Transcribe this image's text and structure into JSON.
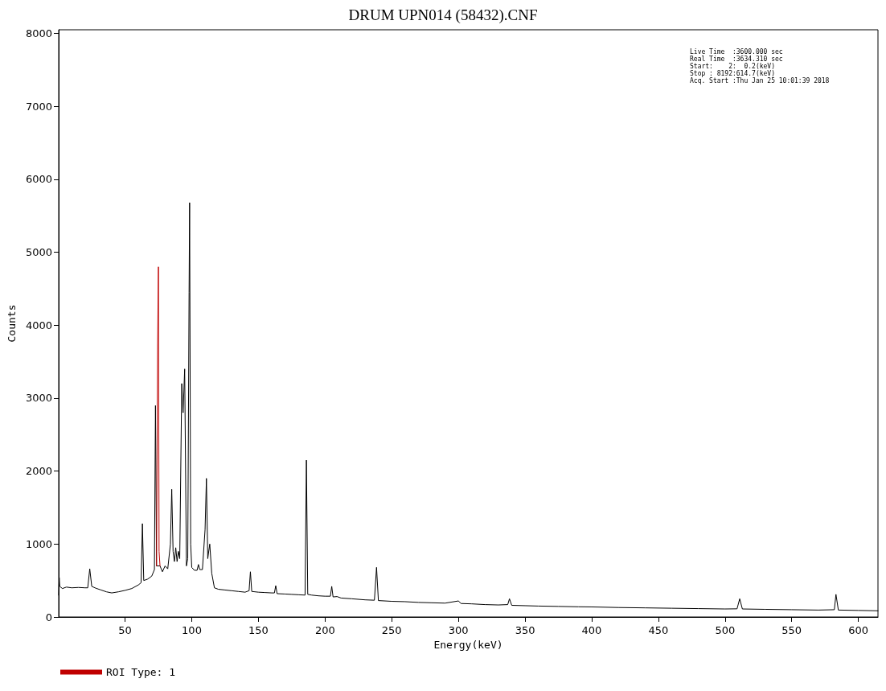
{
  "chart_data": {
    "type": "line",
    "title": "DRUM UPN014 (58432).CNF",
    "xlabel": "Energy(keV)",
    "ylabel": "Counts",
    "annotations": [
      "Live Time  :3600.000 sec",
      "Real Time  :3634.310 sec",
      "Start:    2:  0.2(keV)",
      "Stop : 8192:614.7(keV)",
      "Acq. Start :Thu Jan 25 10:01:39 2018"
    ],
    "xlim": [
      0.2,
      614.7
    ],
    "xticks": [
      50,
      100,
      150,
      200,
      250,
      300,
      350,
      400,
      450,
      500,
      550,
      600
    ],
    "ylim": [
      0,
      8050
    ],
    "yticks": [
      0,
      1000,
      2000,
      3000,
      4000,
      5000,
      6000,
      7000,
      8000
    ],
    "grid": false,
    "marker": "none",
    "line_style": "solid",
    "legend": "bottom left",
    "series": [
      {
        "color": "#000000",
        "x": [
          0.2,
          0.6,
          1,
          3,
          6,
          10,
          15,
          20,
          22,
          23.5,
          25,
          28,
          32,
          36,
          40,
          45,
          50,
          55,
          60,
          62,
          63,
          64,
          67,
          70,
          72,
          72.8,
          73.6,
          76.2,
          78,
          80,
          82,
          84,
          85,
          86,
          87,
          88,
          89,
          90,
          91,
          92.5,
          93.5,
          94.7,
          96,
          97,
          98,
          98.4,
          99.2,
          100,
          102,
          104,
          105,
          106,
          108,
          110,
          111,
          112,
          113.5,
          115,
          117,
          120,
          125,
          130,
          135,
          140,
          143,
          144,
          145,
          150,
          155,
          160,
          162,
          163,
          164,
          170,
          175,
          180,
          185,
          186,
          187,
          190,
          195,
          200,
          204,
          205,
          206,
          209,
          212,
          220,
          230,
          237,
          238.6,
          240,
          250,
          260,
          270,
          280,
          290,
          300,
          302,
          310,
          320,
          330,
          337,
          338.3,
          340,
          350,
          360,
          375,
          390,
          400,
          420,
          440,
          460,
          480,
          500,
          509,
          511,
          513,
          530,
          550,
          570,
          582,
          583.2,
          585,
          600,
          614.7
        ],
        "values": [
          300,
          540,
          420,
          390,
          410,
          400,
          405,
          400,
          400,
          660,
          420,
          395,
          370,
          345,
          330,
          345,
          365,
          390,
          440,
          470,
          1280,
          500,
          520,
          560,
          650,
          2900,
          700,
          700,
          620,
          700,
          660,
          1000,
          1750,
          900,
          760,
          950,
          760,
          900,
          800,
          3200,
          2800,
          3400,
          700,
          800,
          4450,
          5680,
          1000,
          680,
          640,
          640,
          720,
          650,
          650,
          1200,
          1900,
          800,
          1000,
          600,
          400,
          380,
          370,
          360,
          350,
          340,
          360,
          620,
          350,
          340,
          335,
          330,
          330,
          430,
          320,
          315,
          310,
          305,
          300,
          2150,
          310,
          300,
          290,
          285,
          285,
          420,
          275,
          280,
          260,
          250,
          235,
          230,
          680,
          225,
          215,
          210,
          200,
          195,
          190,
          220,
          185,
          180,
          170,
          165,
          170,
          250,
          160,
          155,
          150,
          145,
          140,
          138,
          130,
          125,
          120,
          115,
          110,
          112,
          250,
          110,
          105,
          100,
          95,
          100,
          310,
          95,
          90,
          85
        ]
      },
      {
        "name": "ROI Type: 1",
        "color": "#c00000",
        "x": [
          73.6,
          74.4,
          75,
          75.5,
          76.2
        ],
        "values": [
          700,
          3750,
          4800,
          900,
          700
        ]
      }
    ]
  }
}
